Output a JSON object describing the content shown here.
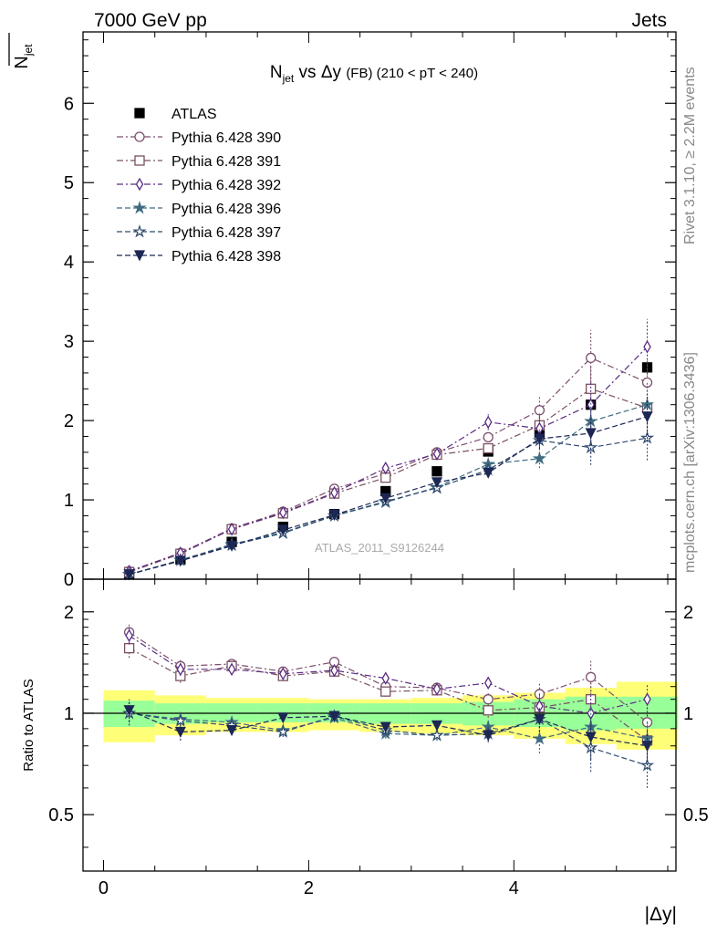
{
  "header": {
    "left": "7000 GeV pp",
    "right": "Jets",
    "side_top": "Rivet 3.1.10, ≥ 2.2M events",
    "side_bottom": "mcplots.cern.ch [arXiv:1306.3436]",
    "watermark": "ATLAS_2011_S9126244"
  },
  "chart_data": [
    {
      "type": "scatter",
      "title": "N_jet vs Δy (FB) (210 < pT < 240)",
      "title_parts": {
        "main": "N",
        "sub": "jet",
        "mid": " vs Δy ",
        "small": "(FB)",
        "tail": " (210 < pT < 240)"
      },
      "ylabel": "N_jet",
      "ylabel_parts": {
        "main": "N",
        "sub": "jet"
      },
      "xlim": [
        -0.2,
        5.58
      ],
      "ylim": [
        0,
        6.9
      ],
      "yticks": [
        0,
        1,
        2,
        3,
        4,
        5,
        6
      ],
      "legend_position": "top-left",
      "x": [
        0.25,
        0.75,
        1.25,
        1.75,
        2.25,
        2.75,
        3.25,
        3.75,
        4.25,
        4.75,
        5.3
      ],
      "series": [
        {
          "name": "ATLAS",
          "color": "#000000",
          "marker": "square-filled",
          "line": "none",
          "values": [
            0.06,
            0.25,
            0.47,
            0.66,
            0.82,
            1.11,
            1.36,
            1.61,
            1.85,
            2.2,
            2.67
          ]
        },
        {
          "name": "Pythia 6.428 390",
          "color": "#7b4f6e",
          "marker": "circle-open",
          "line": "dashdot",
          "values": [
            0.1,
            0.33,
            0.64,
            0.85,
            1.14,
            1.33,
            1.6,
            1.79,
            2.13,
            2.79,
            2.48
          ],
          "errors": [
            0,
            0,
            0,
            0,
            0,
            0,
            0,
            0,
            0.18,
            0.35,
            0.3
          ]
        },
        {
          "name": "Pythia 6.428 391",
          "color": "#7a5060",
          "marker": "square-open",
          "line": "dashdot",
          "values": [
            0.09,
            0.32,
            0.63,
            0.83,
            1.08,
            1.28,
            1.57,
            1.65,
            1.94,
            2.4,
            2.16
          ],
          "errors": [
            0,
            0,
            0,
            0,
            0,
            0,
            0,
            0,
            0.15,
            0.3,
            0.3
          ]
        },
        {
          "name": "Pythia 6.428 392",
          "color": "#5a2d82",
          "marker": "diamond-open",
          "line": "dashdot",
          "values": [
            0.1,
            0.33,
            0.63,
            0.84,
            1.09,
            1.4,
            1.58,
            1.98,
            1.9,
            2.2,
            2.93
          ],
          "errors": [
            0,
            0,
            0,
            0,
            0,
            0,
            0,
            0.1,
            0.15,
            0.3,
            0.35
          ]
        },
        {
          "name": "Pythia 6.428 396",
          "color": "#3f6b80",
          "marker": "star-filled",
          "line": "dashed",
          "values": [
            0.06,
            0.24,
            0.44,
            0.59,
            0.8,
            0.97,
            1.16,
            1.45,
            1.52,
            1.99,
            2.2
          ],
          "errors": [
            0,
            0,
            0,
            0,
            0,
            0,
            0,
            0,
            0.12,
            0.25,
            0.3
          ]
        },
        {
          "name": "Pythia 6.428 397",
          "color": "#2e4a6e",
          "marker": "star-open",
          "line": "dashed",
          "values": [
            0.06,
            0.24,
            0.43,
            0.58,
            0.8,
            0.98,
            1.15,
            1.38,
            1.75,
            1.66,
            1.78
          ],
          "errors": [
            0,
            0,
            0,
            0,
            0,
            0,
            0,
            0,
            0.12,
            0.22,
            0.28
          ]
        },
        {
          "name": "Pythia 6.428 398",
          "color": "#1c2754",
          "marker": "triangle-down-filled",
          "line": "dashed",
          "values": [
            0.06,
            0.23,
            0.42,
            0.62,
            0.81,
            1.02,
            1.22,
            1.34,
            1.77,
            1.84,
            2.05
          ],
          "errors": [
            0,
            0,
            0,
            0,
            0,
            0,
            0,
            0,
            0.12,
            0.25,
            0.28
          ]
        }
      ]
    },
    {
      "type": "scatter",
      "ylabel": "Ratio to ATLAS",
      "xlabel": "|Δy|",
      "xlim": [
        -0.2,
        5.58
      ],
      "xticks": [
        0,
        2,
        4
      ],
      "ylim": [
        0.34,
        2.5
      ],
      "yticks": [
        0.5,
        1,
        2
      ],
      "yscale": "log",
      "reference_line": 1,
      "bands": {
        "bins": [
          [
            0,
            0.5
          ],
          [
            0.5,
            1.0
          ],
          [
            1.0,
            1.5
          ],
          [
            1.5,
            2.0
          ],
          [
            2.0,
            2.5
          ],
          [
            2.5,
            3.0
          ],
          [
            3.0,
            3.5
          ],
          [
            3.5,
            4.0
          ],
          [
            4.0,
            4.5
          ],
          [
            4.5,
            5.0
          ],
          [
            5.0,
            5.6
          ]
        ],
        "green": [
          [
            0.91,
            1.09
          ],
          [
            0.93,
            1.07
          ],
          [
            0.94,
            1.07
          ],
          [
            0.94,
            1.07
          ],
          [
            0.94,
            1.07
          ],
          [
            0.93,
            1.07
          ],
          [
            0.93,
            1.07
          ],
          [
            0.92,
            1.08
          ],
          [
            0.91,
            1.1
          ],
          [
            0.89,
            1.12
          ],
          [
            0.9,
            1.12
          ]
        ],
        "yellow": [
          [
            0.82,
            1.17
          ],
          [
            0.86,
            1.13
          ],
          [
            0.88,
            1.11
          ],
          [
            0.88,
            1.11
          ],
          [
            0.89,
            1.1
          ],
          [
            0.88,
            1.1
          ],
          [
            0.87,
            1.11
          ],
          [
            0.86,
            1.13
          ],
          [
            0.84,
            1.15
          ],
          [
            0.81,
            1.19
          ],
          [
            0.78,
            1.24
          ]
        ],
        "green_color": "#99ff99",
        "yellow_color": "#ffff77"
      },
      "series": [
        {
          "name": "Pythia 6.428 390",
          "values": [
            1.74,
            1.38,
            1.4,
            1.33,
            1.42,
            1.2,
            1.19,
            1.1,
            1.14,
            1.28,
            0.94
          ],
          "errors": [
            0.1,
            0.06,
            0.04,
            0.04,
            0.03,
            0.04,
            0.04,
            0.05,
            0.1,
            0.15,
            0.12
          ]
        },
        {
          "name": "Pythia 6.428 391",
          "values": [
            1.56,
            1.29,
            1.38,
            1.29,
            1.33,
            1.16,
            1.17,
            1.02,
            1.04,
            1.1,
            0.83
          ],
          "errors": [
            0.1,
            0.06,
            0.04,
            0.04,
            0.03,
            0.04,
            0.04,
            0.05,
            0.1,
            0.15,
            0.12
          ]
        },
        {
          "name": "Pythia 6.428 392",
          "values": [
            1.7,
            1.35,
            1.35,
            1.31,
            1.34,
            1.27,
            1.18,
            1.23,
            1.05,
            1.0,
            1.1
          ],
          "errors": [
            0.1,
            0.06,
            0.04,
            0.04,
            0.03,
            0.04,
            0.04,
            0.05,
            0.1,
            0.15,
            0.12
          ]
        },
        {
          "name": "Pythia 6.428 396",
          "values": [
            1.0,
            0.96,
            0.94,
            0.89,
            0.97,
            0.87,
            0.86,
            0.91,
            0.84,
            0.91,
            0.84
          ],
          "errors": [
            0.08,
            0.05,
            0.03,
            0.03,
            0.03,
            0.03,
            0.03,
            0.04,
            0.08,
            0.12,
            0.1
          ]
        },
        {
          "name": "Pythia 6.428 397",
          "values": [
            1.0,
            0.95,
            0.92,
            0.88,
            0.98,
            0.89,
            0.86,
            0.87,
            0.96,
            0.79,
            0.7
          ],
          "errors": [
            0.08,
            0.05,
            0.03,
            0.03,
            0.03,
            0.03,
            0.03,
            0.04,
            0.08,
            0.12,
            0.1
          ]
        },
        {
          "name": "Pythia 6.428 398",
          "values": [
            1.02,
            0.88,
            0.89,
            0.97,
            0.98,
            0.91,
            0.92,
            0.86,
            0.96,
            0.85,
            0.8
          ],
          "errors": [
            0.08,
            0.05,
            0.03,
            0.03,
            0.03,
            0.03,
            0.03,
            0.04,
            0.08,
            0.12,
            0.1
          ]
        }
      ]
    }
  ]
}
